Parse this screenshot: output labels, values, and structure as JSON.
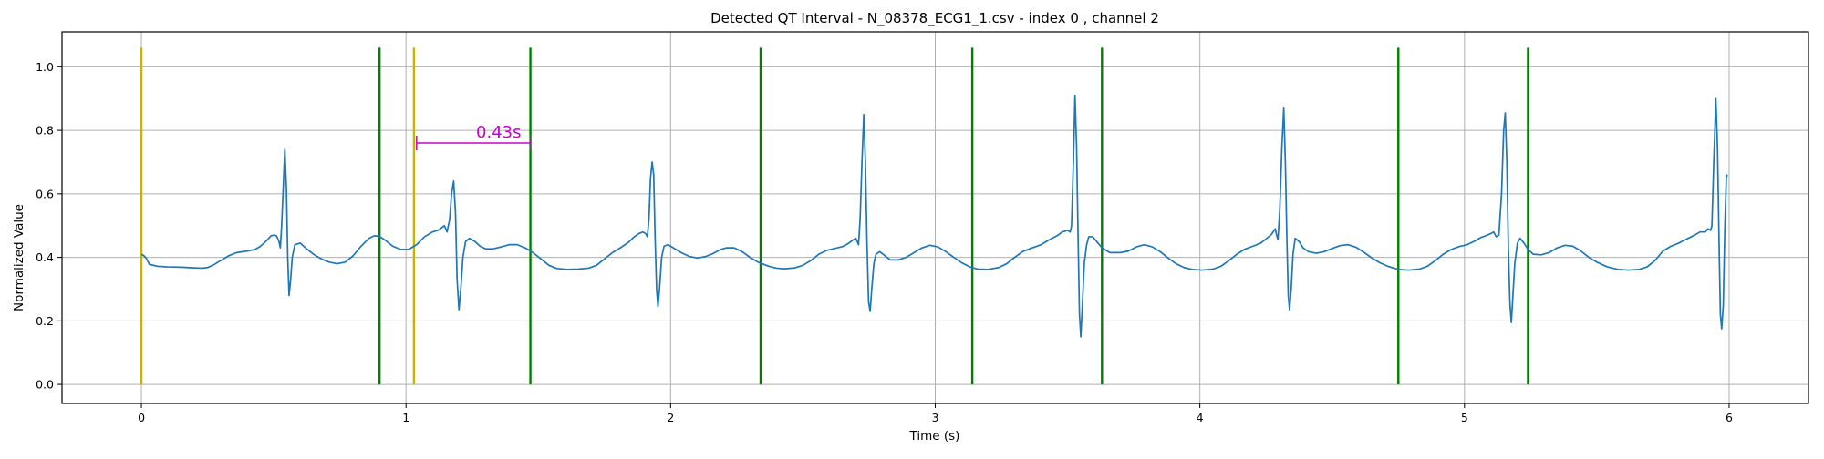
{
  "chart_data": {
    "type": "line",
    "title": "Detected QT Interval - N_08378_ECG1_1.csv - index 0 , channel 2",
    "xlabel": "Time (s)",
    "ylabel": "Normalized Value",
    "xlim": [
      -0.3,
      6.3
    ],
    "ylim": [
      -0.06,
      1.11
    ],
    "xticks": [
      0,
      1,
      2,
      3,
      4,
      5,
      6
    ],
    "yticks": [
      0.0,
      0.2,
      0.4,
      0.6,
      0.8,
      1.0
    ],
    "xtick_labels": [
      "0",
      "1",
      "2",
      "3",
      "4",
      "5",
      "6"
    ],
    "ytick_labels": [
      "0.0",
      "0.2",
      "0.4",
      "0.6",
      "0.8",
      "1.0"
    ],
    "grid": true,
    "colors": {
      "signal": "#1f77b4",
      "q_onset": "#c8b400",
      "t_end": "#008000",
      "annotation": "#cc00cc",
      "grid": "#b0b0b0"
    },
    "series": [
      {
        "points": [
          [
            0.0,
            0.41
          ],
          [
            0.01,
            0.405
          ],
          [
            0.02,
            0.395
          ],
          [
            0.03,
            0.378
          ],
          [
            0.06,
            0.372
          ],
          [
            0.1,
            0.37
          ],
          [
            0.15,
            0.369
          ],
          [
            0.2,
            0.367
          ],
          [
            0.23,
            0.366
          ],
          [
            0.25,
            0.368
          ],
          [
            0.27,
            0.375
          ],
          [
            0.3,
            0.39
          ],
          [
            0.33,
            0.405
          ],
          [
            0.36,
            0.415
          ],
          [
            0.4,
            0.42
          ],
          [
            0.43,
            0.425
          ],
          [
            0.45,
            0.435
          ],
          [
            0.47,
            0.45
          ],
          [
            0.49,
            0.468
          ],
          [
            0.5,
            0.47
          ],
          [
            0.51,
            0.468
          ],
          [
            0.515,
            0.46
          ],
          [
            0.52,
            0.45
          ],
          [
            0.525,
            0.43
          ],
          [
            0.53,
            0.5
          ],
          [
            0.536,
            0.62
          ],
          [
            0.542,
            0.74
          ],
          [
            0.548,
            0.62
          ],
          [
            0.553,
            0.4
          ],
          [
            0.558,
            0.28
          ],
          [
            0.564,
            0.33
          ],
          [
            0.57,
            0.4
          ],
          [
            0.58,
            0.44
          ],
          [
            0.6,
            0.445
          ],
          [
            0.62,
            0.43
          ],
          [
            0.65,
            0.41
          ],
          [
            0.68,
            0.395
          ],
          [
            0.71,
            0.385
          ],
          [
            0.74,
            0.38
          ],
          [
            0.77,
            0.385
          ],
          [
            0.8,
            0.405
          ],
          [
            0.83,
            0.435
          ],
          [
            0.86,
            0.46
          ],
          [
            0.88,
            0.468
          ],
          [
            0.9,
            0.466
          ],
          [
            0.92,
            0.455
          ],
          [
            0.95,
            0.435
          ],
          [
            0.98,
            0.425
          ],
          [
            1.01,
            0.425
          ],
          [
            1.04,
            0.44
          ],
          [
            1.07,
            0.465
          ],
          [
            1.1,
            0.48
          ],
          [
            1.12,
            0.485
          ],
          [
            1.13,
            0.49
          ],
          [
            1.145,
            0.5
          ],
          [
            1.155,
            0.48
          ],
          [
            1.165,
            0.52
          ],
          [
            1.172,
            0.6
          ],
          [
            1.18,
            0.64
          ],
          [
            1.187,
            0.54
          ],
          [
            1.193,
            0.33
          ],
          [
            1.2,
            0.235
          ],
          [
            1.207,
            0.3
          ],
          [
            1.215,
            0.4
          ],
          [
            1.225,
            0.45
          ],
          [
            1.24,
            0.46
          ],
          [
            1.26,
            0.45
          ],
          [
            1.28,
            0.435
          ],
          [
            1.3,
            0.427
          ],
          [
            1.33,
            0.427
          ],
          [
            1.36,
            0.433
          ],
          [
            1.39,
            0.44
          ],
          [
            1.42,
            0.44
          ],
          [
            1.45,
            0.43
          ],
          [
            1.48,
            0.415
          ],
          [
            1.51,
            0.395
          ],
          [
            1.54,
            0.375
          ],
          [
            1.57,
            0.365
          ],
          [
            1.61,
            0.362
          ],
          [
            1.65,
            0.363
          ],
          [
            1.69,
            0.366
          ],
          [
            1.72,
            0.375
          ],
          [
            1.75,
            0.395
          ],
          [
            1.78,
            0.415
          ],
          [
            1.81,
            0.43
          ],
          [
            1.84,
            0.447
          ],
          [
            1.86,
            0.463
          ],
          [
            1.88,
            0.475
          ],
          [
            1.895,
            0.48
          ],
          [
            1.905,
            0.475
          ],
          [
            1.912,
            0.465
          ],
          [
            1.918,
            0.52
          ],
          [
            1.924,
            0.65
          ],
          [
            1.93,
            0.7
          ],
          [
            1.936,
            0.66
          ],
          [
            1.941,
            0.47
          ],
          [
            1.947,
            0.3
          ],
          [
            1.952,
            0.245
          ],
          [
            1.958,
            0.3
          ],
          [
            1.966,
            0.4
          ],
          [
            1.975,
            0.435
          ],
          [
            1.99,
            0.44
          ],
          [
            2.01,
            0.43
          ],
          [
            2.04,
            0.415
          ],
          [
            2.07,
            0.403
          ],
          [
            2.1,
            0.398
          ],
          [
            2.13,
            0.402
          ],
          [
            2.16,
            0.412
          ],
          [
            2.19,
            0.425
          ],
          [
            2.21,
            0.43
          ],
          [
            2.24,
            0.43
          ],
          [
            2.27,
            0.418
          ],
          [
            2.3,
            0.4
          ],
          [
            2.33,
            0.385
          ],
          [
            2.37,
            0.372
          ],
          [
            2.4,
            0.366
          ],
          [
            2.43,
            0.364
          ],
          [
            2.47,
            0.367
          ],
          [
            2.5,
            0.375
          ],
          [
            2.53,
            0.39
          ],
          [
            2.56,
            0.41
          ],
          [
            2.59,
            0.422
          ],
          [
            2.62,
            0.428
          ],
          [
            2.65,
            0.434
          ],
          [
            2.67,
            0.443
          ],
          [
            2.69,
            0.455
          ],
          [
            2.7,
            0.46
          ],
          [
            2.705,
            0.45
          ],
          [
            2.71,
            0.44
          ],
          [
            2.716,
            0.52
          ],
          [
            2.723,
            0.7
          ],
          [
            2.73,
            0.85
          ],
          [
            2.736,
            0.7
          ],
          [
            2.742,
            0.45
          ],
          [
            2.748,
            0.26
          ],
          [
            2.754,
            0.23
          ],
          [
            2.76,
            0.3
          ],
          [
            2.768,
            0.38
          ],
          [
            2.776,
            0.41
          ],
          [
            2.79,
            0.418
          ],
          [
            2.81,
            0.405
          ],
          [
            2.83,
            0.392
          ],
          [
            2.86,
            0.392
          ],
          [
            2.89,
            0.4
          ],
          [
            2.92,
            0.415
          ],
          [
            2.95,
            0.43
          ],
          [
            2.98,
            0.438
          ],
          [
            3.01,
            0.433
          ],
          [
            3.04,
            0.418
          ],
          [
            3.07,
            0.4
          ],
          [
            3.1,
            0.383
          ],
          [
            3.13,
            0.37
          ],
          [
            3.16,
            0.363
          ],
          [
            3.2,
            0.362
          ],
          [
            3.24,
            0.368
          ],
          [
            3.27,
            0.38
          ],
          [
            3.3,
            0.4
          ],
          [
            3.33,
            0.418
          ],
          [
            3.36,
            0.428
          ],
          [
            3.4,
            0.44
          ],
          [
            3.43,
            0.455
          ],
          [
            3.46,
            0.468
          ],
          [
            3.48,
            0.48
          ],
          [
            3.5,
            0.485
          ],
          [
            3.51,
            0.48
          ],
          [
            3.515,
            0.5
          ],
          [
            3.522,
            0.7
          ],
          [
            3.528,
            0.91
          ],
          [
            3.534,
            0.75
          ],
          [
            3.54,
            0.45
          ],
          [
            3.545,
            0.22
          ],
          [
            3.55,
            0.15
          ],
          [
            3.556,
            0.25
          ],
          [
            3.563,
            0.38
          ],
          [
            3.572,
            0.44
          ],
          [
            3.58,
            0.465
          ],
          [
            3.595,
            0.465
          ],
          [
            3.61,
            0.45
          ],
          [
            3.63,
            0.43
          ],
          [
            3.66,
            0.415
          ],
          [
            3.7,
            0.415
          ],
          [
            3.73,
            0.42
          ],
          [
            3.76,
            0.433
          ],
          [
            3.79,
            0.44
          ],
          [
            3.82,
            0.433
          ],
          [
            3.85,
            0.418
          ],
          [
            3.88,
            0.398
          ],
          [
            3.91,
            0.38
          ],
          [
            3.94,
            0.368
          ],
          [
            3.97,
            0.362
          ],
          [
            4.01,
            0.36
          ],
          [
            4.05,
            0.363
          ],
          [
            4.08,
            0.372
          ],
          [
            4.11,
            0.39
          ],
          [
            4.14,
            0.41
          ],
          [
            4.17,
            0.426
          ],
          [
            4.2,
            0.435
          ],
          [
            4.23,
            0.445
          ],
          [
            4.25,
            0.458
          ],
          [
            4.27,
            0.472
          ],
          [
            4.285,
            0.49
          ],
          [
            4.29,
            0.47
          ],
          [
            4.295,
            0.455
          ],
          [
            4.302,
            0.55
          ],
          [
            4.31,
            0.75
          ],
          [
            4.317,
            0.87
          ],
          [
            4.323,
            0.7
          ],
          [
            4.329,
            0.45
          ],
          [
            4.334,
            0.28
          ],
          [
            4.339,
            0.235
          ],
          [
            4.345,
            0.3
          ],
          [
            4.352,
            0.41
          ],
          [
            4.36,
            0.46
          ],
          [
            4.375,
            0.45
          ],
          [
            4.39,
            0.43
          ],
          [
            4.41,
            0.418
          ],
          [
            4.44,
            0.413
          ],
          [
            4.47,
            0.418
          ],
          [
            4.5,
            0.428
          ],
          [
            4.53,
            0.437
          ],
          [
            4.56,
            0.44
          ],
          [
            4.59,
            0.432
          ],
          [
            4.62,
            0.416
          ],
          [
            4.65,
            0.398
          ],
          [
            4.68,
            0.383
          ],
          [
            4.71,
            0.372
          ],
          [
            4.75,
            0.362
          ],
          [
            4.79,
            0.36
          ],
          [
            4.83,
            0.363
          ],
          [
            4.86,
            0.372
          ],
          [
            4.89,
            0.39
          ],
          [
            4.92,
            0.41
          ],
          [
            4.95,
            0.425
          ],
          [
            4.98,
            0.434
          ],
          [
            5.01,
            0.44
          ],
          [
            5.04,
            0.452
          ],
          [
            5.06,
            0.462
          ],
          [
            5.08,
            0.468
          ],
          [
            5.1,
            0.475
          ],
          [
            5.11,
            0.48
          ],
          [
            5.12,
            0.465
          ],
          [
            5.13,
            0.47
          ],
          [
            5.14,
            0.6
          ],
          [
            5.148,
            0.8
          ],
          [
            5.154,
            0.855
          ],
          [
            5.16,
            0.7
          ],
          [
            5.166,
            0.42
          ],
          [
            5.172,
            0.25
          ],
          [
            5.177,
            0.195
          ],
          [
            5.183,
            0.28
          ],
          [
            5.19,
            0.38
          ],
          [
            5.2,
            0.445
          ],
          [
            5.21,
            0.46
          ],
          [
            5.225,
            0.445
          ],
          [
            5.24,
            0.425
          ],
          [
            5.26,
            0.41
          ],
          [
            5.29,
            0.408
          ],
          [
            5.32,
            0.415
          ],
          [
            5.35,
            0.43
          ],
          [
            5.38,
            0.438
          ],
          [
            5.41,
            0.435
          ],
          [
            5.44,
            0.42
          ],
          [
            5.47,
            0.4
          ],
          [
            5.5,
            0.385
          ],
          [
            5.54,
            0.37
          ],
          [
            5.58,
            0.362
          ],
          [
            5.62,
            0.36
          ],
          [
            5.66,
            0.362
          ],
          [
            5.69,
            0.37
          ],
          [
            5.72,
            0.39
          ],
          [
            5.75,
            0.42
          ],
          [
            5.78,
            0.435
          ],
          [
            5.81,
            0.445
          ],
          [
            5.84,
            0.458
          ],
          [
            5.87,
            0.47
          ],
          [
            5.89,
            0.48
          ],
          [
            5.91,
            0.48
          ],
          [
            5.92,
            0.49
          ],
          [
            5.93,
            0.485
          ],
          [
            5.935,
            0.5
          ],
          [
            5.942,
            0.7
          ],
          [
            5.95,
            0.9
          ],
          [
            5.956,
            0.75
          ],
          [
            5.962,
            0.45
          ],
          [
            5.967,
            0.22
          ],
          [
            5.972,
            0.175
          ],
          [
            5.978,
            0.25
          ],
          [
            5.984,
            0.5
          ],
          [
            5.99,
            0.66
          ],
          [
            5.994,
            0.655
          ]
        ]
      }
    ],
    "vlines": {
      "q_onset": [
        0.0,
        1.03
      ],
      "t_end": [
        0.9,
        1.47,
        2.34,
        3.14,
        3.63,
        4.75,
        5.24
      ]
    },
    "vline_range": [
      0.0,
      1.06
    ],
    "annotation": {
      "text": "0.43s",
      "x_start": 1.04,
      "x_end": 1.47,
      "y": 0.76,
      "text_x": 1.35,
      "text_y": 0.795
    }
  }
}
